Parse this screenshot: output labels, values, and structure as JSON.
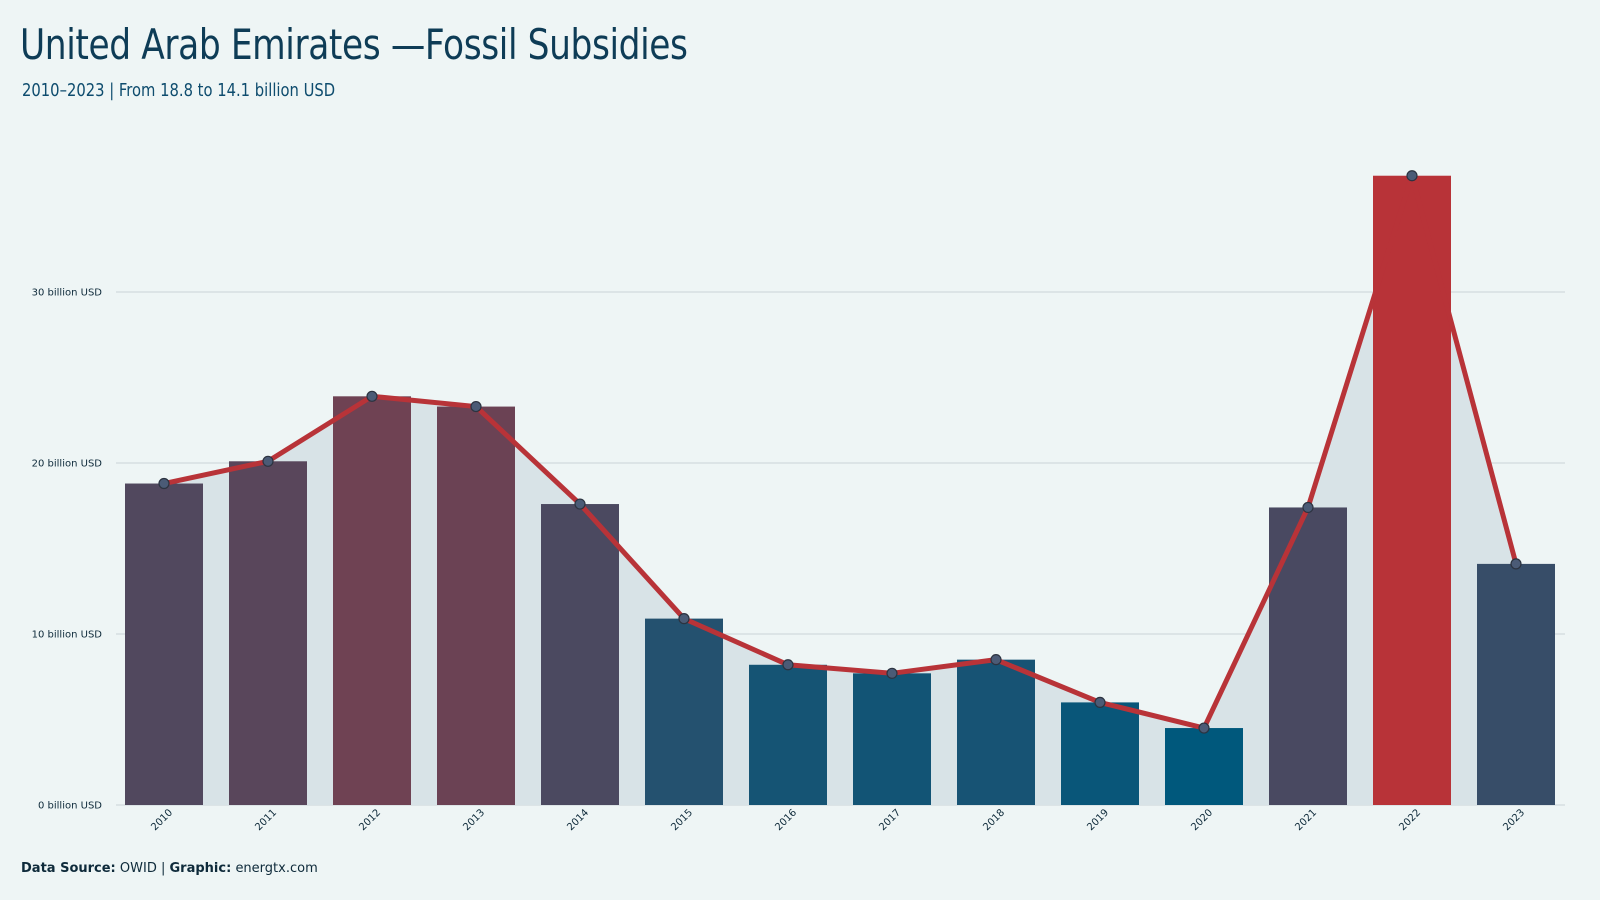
{
  "header": {
    "title": "United Arab Emirates —Fossil Subsidies",
    "subtitle": "2010–2023 | From 18.8 to 14.1 billion USD"
  },
  "footer": {
    "source_label": "Data Source:",
    "source_value": "OWID",
    "separator": "|",
    "graphic_label": "Graphic:",
    "graphic_value": "energtx.com"
  },
  "chart_data": {
    "type": "bar",
    "categories": [
      "2010",
      "2011",
      "2012",
      "2013",
      "2014",
      "2015",
      "2016",
      "2017",
      "2018",
      "2019",
      "2020",
      "2021",
      "2022",
      "2023"
    ],
    "values": [
      18.8,
      20.1,
      23.9,
      23.3,
      17.6,
      10.9,
      8.2,
      7.7,
      8.5,
      6.0,
      4.5,
      17.4,
      36.8,
      14.1
    ],
    "unit": "billion USD",
    "ylim": [
      0,
      38
    ],
    "yticks": [
      0,
      10,
      20,
      30
    ],
    "ytick_labels": [
      "0 billion USD",
      "10 billion USD",
      "20 billion USD",
      "30 billion USD"
    ],
    "grid": true,
    "overlay": "line with markers and shaded area connecting the same values",
    "colors": {
      "line": "#b83338",
      "area": "#d8e3e7",
      "gridline": "#c9d3d6",
      "low": "#00587c",
      "high": "#b83338",
      "marker_fill": "#4b5b76"
    },
    "xlabel": "",
    "ylabel": ""
  }
}
